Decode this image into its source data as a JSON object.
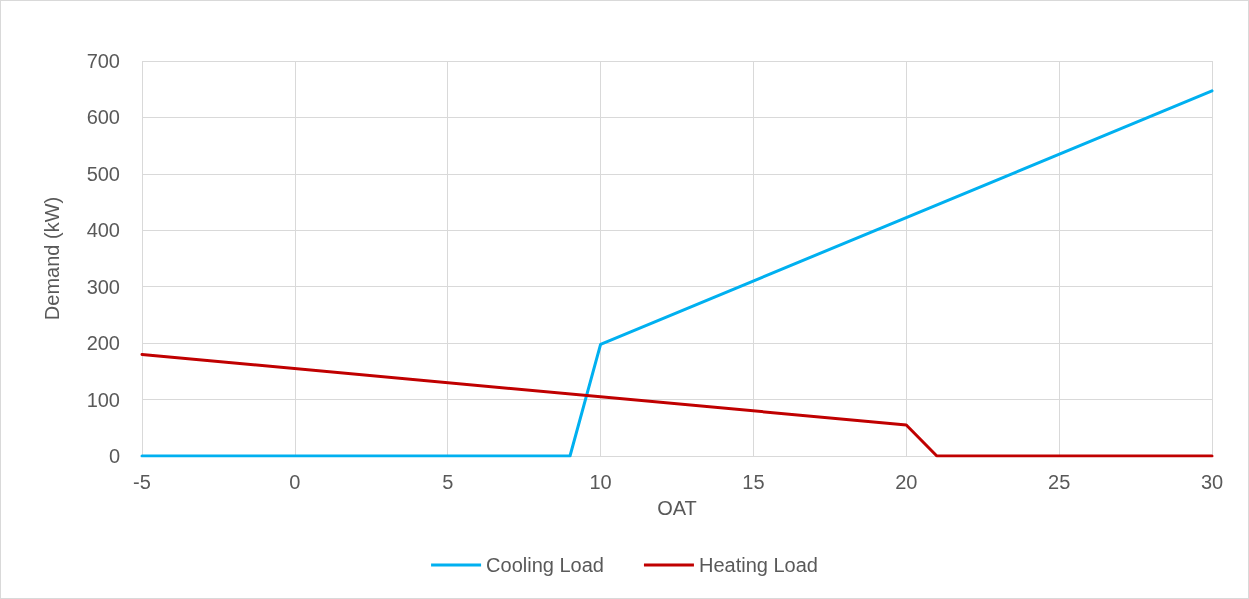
{
  "chart_data": {
    "type": "line",
    "xlabel": "OAT",
    "ylabel": "Demand (kW)",
    "xlim": [
      -5,
      30
    ],
    "xticks": [
      -5,
      0,
      5,
      10,
      15,
      20,
      25,
      30
    ],
    "ylim": [
      0,
      700
    ],
    "yticks": [
      0,
      100,
      200,
      300,
      400,
      500,
      600,
      700
    ],
    "grid": true,
    "legend": "bottom",
    "marker": "none",
    "line_style": "solid",
    "series": [
      {
        "name": "Cooling Load",
        "color": "#00b0f0",
        "x": [
          -5,
          9,
          10,
          30
        ],
        "values": [
          0,
          0,
          198,
          647
        ]
      },
      {
        "name": "Heating Load",
        "color": "#c00000",
        "x": [
          -5,
          20,
          21,
          30
        ],
        "values": [
          180,
          55,
          0,
          0
        ]
      }
    ]
  }
}
